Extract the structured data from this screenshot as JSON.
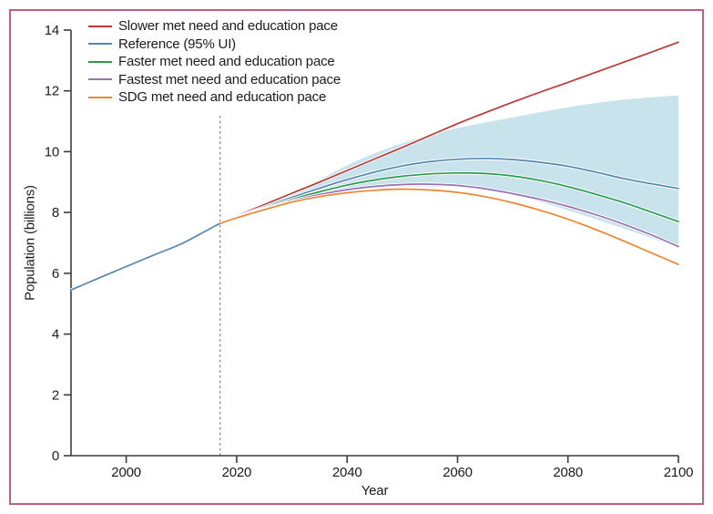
{
  "figure": {
    "border_color": "#c4607e",
    "background": "#ffffff"
  },
  "chart_data": {
    "type": "line",
    "title": "",
    "xlabel": "Year",
    "ylabel": "Population (billions)",
    "xlim": [
      1990,
      2100
    ],
    "ylim": [
      0,
      14
    ],
    "x_ticks": [
      2000,
      2020,
      2040,
      2060,
      2080,
      2100
    ],
    "y_ticks": [
      0,
      2,
      4,
      6,
      8,
      10,
      12,
      14
    ],
    "grid": false,
    "legend_position": "top-left",
    "axis_color": "#3d3d3d",
    "forecast_start_marker": {
      "year": 2017,
      "style": "dashed-vertical",
      "top_value": 11.2,
      "color": "#7f949f"
    },
    "uncertainty_band": {
      "label": "95% UI",
      "series": "Reference",
      "color": "#c9e3ed",
      "x": [
        2017,
        2020,
        2025,
        2030,
        2035,
        2040,
        2045,
        2050,
        2055,
        2060,
        2065,
        2070,
        2075,
        2080,
        2085,
        2090,
        2095,
        2100
      ],
      "upper": [
        7.64,
        7.93,
        8.32,
        8.68,
        9.08,
        9.55,
        9.95,
        10.28,
        10.55,
        10.78,
        10.96,
        11.13,
        11.3,
        11.46,
        11.6,
        11.71,
        11.79,
        11.85
      ],
      "lower": [
        7.64,
        7.8,
        8.07,
        8.33,
        8.52,
        8.7,
        8.79,
        8.85,
        8.86,
        8.84,
        8.75,
        8.58,
        8.35,
        8.08,
        7.78,
        7.48,
        7.17,
        6.83
      ]
    },
    "series": [
      {
        "name": "Slower met need and education pace",
        "color": "#bb3a35",
        "x": [
          2017,
          2020,
          2025,
          2030,
          2035,
          2040,
          2045,
          2050,
          2055,
          2060,
          2065,
          2070,
          2075,
          2080,
          2085,
          2090,
          2095,
          2100
        ],
        "y": [
          7.64,
          7.88,
          8.26,
          8.63,
          9.0,
          9.38,
          9.76,
          10.14,
          10.53,
          10.92,
          11.28,
          11.63,
          11.96,
          12.28,
          12.61,
          12.94,
          13.27,
          13.6
        ]
      },
      {
        "name": "Reference (95% UI)",
        "color": "#5587ae",
        "x": [
          1990,
          1995,
          2000,
          2005,
          2010,
          2015,
          2017,
          2020,
          2025,
          2030,
          2035,
          2040,
          2045,
          2050,
          2055,
          2060,
          2065,
          2070,
          2075,
          2080,
          2085,
          2090,
          2095,
          2100
        ],
        "y": [
          5.45,
          5.84,
          6.22,
          6.6,
          6.97,
          7.45,
          7.64,
          7.85,
          8.18,
          8.5,
          8.8,
          9.08,
          9.33,
          9.53,
          9.67,
          9.75,
          9.78,
          9.74,
          9.65,
          9.52,
          9.33,
          9.12,
          8.95,
          8.79
        ]
      },
      {
        "name": "Faster met need and education pace",
        "color": "#2e9a4e",
        "x": [
          2017,
          2020,
          2025,
          2030,
          2035,
          2040,
          2045,
          2050,
          2055,
          2060,
          2065,
          2070,
          2075,
          2080,
          2085,
          2090,
          2095,
          2100
        ],
        "y": [
          7.64,
          7.84,
          8.14,
          8.43,
          8.68,
          8.9,
          9.07,
          9.19,
          9.27,
          9.3,
          9.28,
          9.2,
          9.05,
          8.85,
          8.6,
          8.33,
          8.02,
          7.7
        ]
      },
      {
        "name": "Fastest met need and education pace",
        "color": "#9a72b4",
        "x": [
          2017,
          2020,
          2025,
          2030,
          2035,
          2040,
          2045,
          2050,
          2055,
          2060,
          2065,
          2070,
          2075,
          2080,
          2085,
          2090,
          2095,
          2100
        ],
        "y": [
          7.64,
          7.83,
          8.11,
          8.38,
          8.59,
          8.75,
          8.86,
          8.92,
          8.93,
          8.89,
          8.78,
          8.62,
          8.43,
          8.2,
          7.93,
          7.62,
          7.27,
          6.88
        ]
      },
      {
        "name": "SDG met need and education pace",
        "color": "#ef8532",
        "x": [
          2017,
          2020,
          2025,
          2030,
          2035,
          2040,
          2045,
          2050,
          2055,
          2060,
          2065,
          2070,
          2075,
          2080,
          2085,
          2090,
          2095,
          2100
        ],
        "y": [
          7.64,
          7.82,
          8.09,
          8.34,
          8.52,
          8.65,
          8.73,
          8.77,
          8.74,
          8.66,
          8.52,
          8.32,
          8.07,
          7.78,
          7.44,
          7.07,
          6.68,
          6.29
        ]
      }
    ]
  }
}
